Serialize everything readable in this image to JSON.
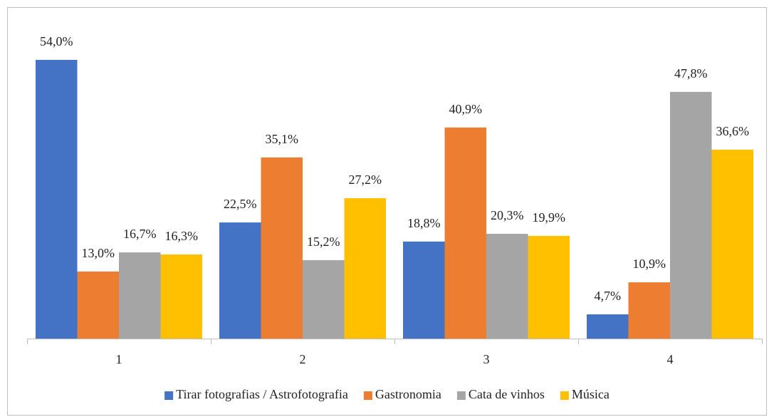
{
  "chart_data": {
    "type": "bar",
    "categories": [
      "1",
      "2",
      "3",
      "4"
    ],
    "series": [
      {
        "name": "Tirar fotografias / Astrofotografia",
        "color": "#4472c4",
        "values": [
          54.0,
          22.5,
          18.8,
          4.7
        ],
        "value_labels": [
          "54,0%",
          "22,5%",
          "18,8%",
          "4,7%"
        ]
      },
      {
        "name": "Gastronomia",
        "color": "#ed7d31",
        "values": [
          13.0,
          35.1,
          40.9,
          10.9
        ],
        "value_labels": [
          "13,0%",
          "35,1%",
          "40,9%",
          "10,9%"
        ]
      },
      {
        "name": "Cata de vinhos",
        "color": "#a5a5a5",
        "values": [
          16.7,
          15.2,
          20.3,
          47.8
        ],
        "value_labels": [
          "16,7%",
          "15,2%",
          "20,3%",
          "47,8%"
        ]
      },
      {
        "name": "Música",
        "color": "#ffc000",
        "values": [
          16.3,
          27.2,
          19.9,
          36.6
        ],
        "value_labels": [
          "16,3%",
          "27,2%",
          "19,9%",
          "36,6%"
        ]
      }
    ]
  }
}
